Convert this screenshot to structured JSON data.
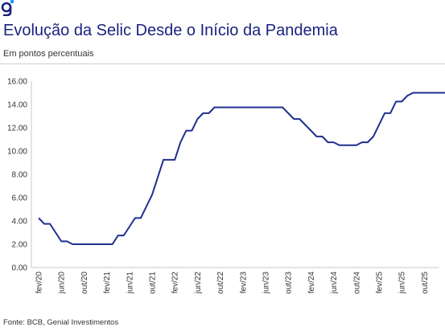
{
  "chart_data": {
    "type": "line",
    "title": "Evolução da Selic Desde o Início da Pandemia",
    "subtitle": "Em pontos percentuais",
    "source": "Fonte: BCB, Genial Investimentos",
    "ylim": [
      0,
      16
    ],
    "y_ticks": [
      "0.00",
      "2.00",
      "4.00",
      "6.00",
      "8.00",
      "10.00",
      "12.00",
      "14.00",
      "16.00"
    ],
    "x_tick_labels": [
      "fev/20",
      "jun/20",
      "out/20",
      "fev/21",
      "jun/21",
      "out/21",
      "fev/22",
      "jun/22",
      "out/22",
      "fev/23",
      "jun/23",
      "out/23",
      "fev/24",
      "jun/24",
      "out/24",
      "fev/25",
      "jun/25",
      "out/25"
    ],
    "x_start": "2020-02",
    "grid": false,
    "line_color": "#1f2f8f",
    "series": [
      {
        "values": [
          4.25,
          3.75,
          3.75,
          3.0,
          2.25,
          2.25,
          2.0,
          2.0,
          2.0,
          2.0,
          2.0,
          2.0,
          2.0,
          2.0,
          2.75,
          2.75,
          3.5,
          4.25,
          4.25,
          5.25,
          6.25,
          7.75,
          9.25,
          9.25,
          9.25,
          10.75,
          11.75,
          11.75,
          12.75,
          13.25,
          13.25,
          13.75,
          13.75,
          13.75,
          13.75,
          13.75,
          13.75,
          13.75,
          13.75,
          13.75,
          13.75,
          13.75,
          13.75,
          13.75,
          13.25,
          12.75,
          12.75,
          12.25,
          11.75,
          11.25,
          11.25,
          10.75,
          10.75,
          10.5,
          10.5,
          10.5,
          10.5,
          10.75,
          10.75,
          11.25,
          12.25,
          13.25,
          13.25,
          14.25,
          14.25,
          14.75,
          15.0,
          15.0,
          15.0,
          15.0,
          15.0,
          15.0,
          15.0,
          15.0
        ]
      }
    ]
  },
  "icons": {
    "logo": "genial-logo-icon"
  }
}
